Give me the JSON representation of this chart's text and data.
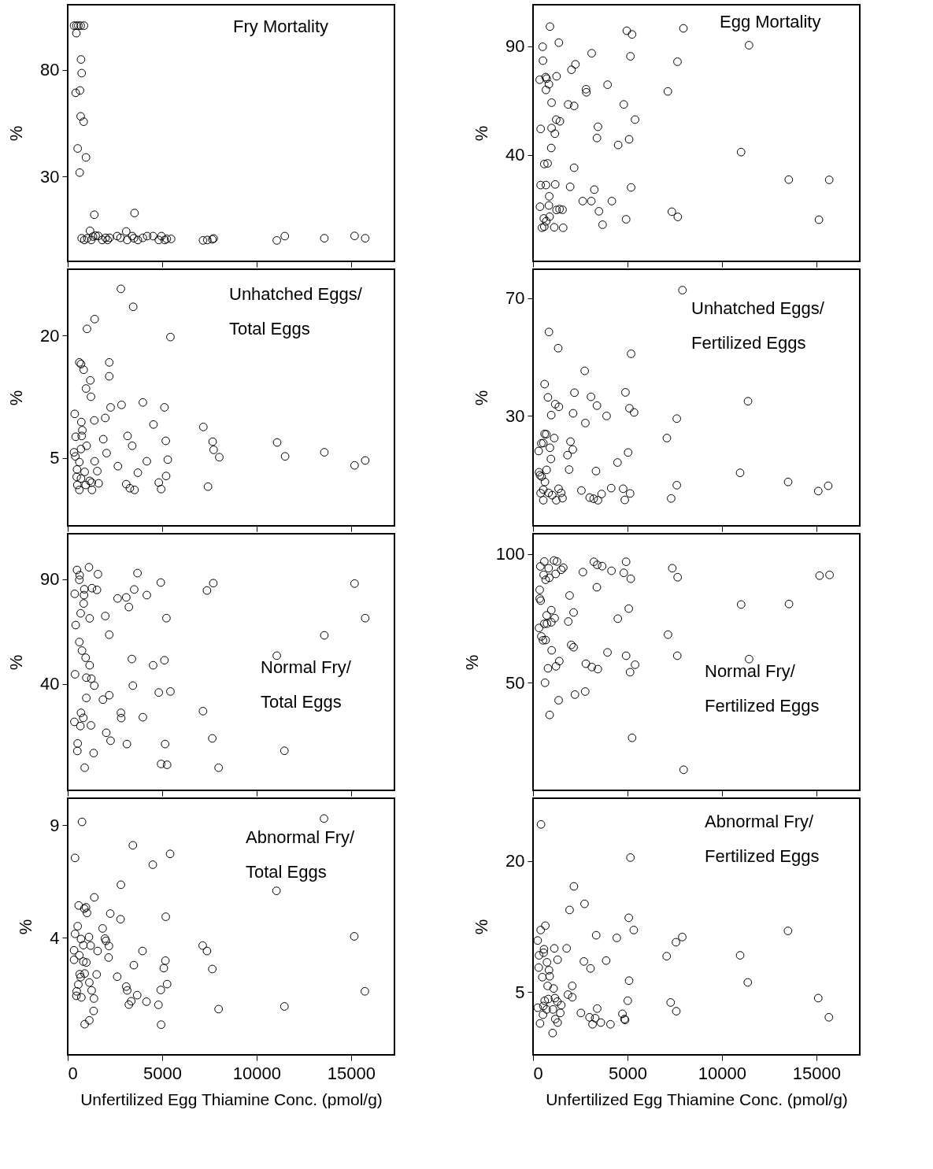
{
  "chart_data": [
    {
      "type": "scatter",
      "title": "Fry Mortality",
      "ylabel": "%",
      "color": "#000000",
      "marker": "circle",
      "grid": false,
      "tick_labels": "y",
      "xlim": [
        0,
        17300
      ],
      "xticks": [
        0,
        5000,
        10000,
        15000
      ],
      "ylim": [
        -9.6,
        110.4
      ],
      "yticks": [
        30,
        80
      ],
      "x": [
        334,
        458,
        563,
        686,
        862,
        458,
        704,
        739,
        422,
        651,
        686,
        845,
        528,
        968,
        634,
        1408,
        3538,
        739,
        880,
        1038,
        1179,
        1250,
        1338,
        1478,
        1619,
        1830,
        2006,
        2112,
        2218,
        2622,
        2798,
        3098,
        3150,
        3414,
        3502,
        3714,
        3978,
        4206,
        4523,
        4822,
        4963,
        5139,
        5245,
        5474,
        7163,
        7392,
        7656,
        7726,
        11070,
        11493,
        13587,
        15189,
        15752
      ],
      "values": [
        100.6,
        100.6,
        100.6,
        100.6,
        100.6,
        97.1,
        84.8,
        78.4,
        69.2,
        70.3,
        58.2,
        55.7,
        43.2,
        39.0,
        31.9,
        12.2,
        13.0,
        1.2,
        0.4,
        1.2,
        4.7,
        0.4,
        2.0,
        2.4,
        2.3,
        0.4,
        1.4,
        0.4,
        1.4,
        2.2,
        1.4,
        4.4,
        0.4,
        2.2,
        1.2,
        0.4,
        1.4,
        2.2,
        2.2,
        0.4,
        2.2,
        0.4,
        0.9,
        0.9,
        0.2,
        0.4,
        0.7,
        1.1,
        0.2,
        2.2,
        1.2,
        2.3,
        1.2
      ]
    },
    {
      "type": "scatter",
      "title": "Egg Mortality",
      "ylabel": "%",
      "color": "#000000",
      "marker": "circle",
      "grid": false,
      "tick_labels": "y",
      "xlim": [
        0,
        17300
      ],
      "xticks": [
        0,
        5000,
        10000,
        15000
      ],
      "ylim": [
        -9.2,
        109.2
      ],
      "yticks": [
        40,
        90
      ],
      "x": [
        895,
        4964,
        5244,
        7963,
        11436,
        509,
        1368,
        3105,
        5157,
        7648,
        526,
        2245,
        2035,
        351,
        667,
        719,
        1245,
        842,
        684,
        2806,
        2824,
        3947,
        7139,
        982,
        1859,
        2175,
        4806,
        1228,
        1421,
        5402,
        403,
        982,
        3438,
        1158,
        3385,
        5087,
        4508,
        965,
        11015,
        596,
        772,
        2175,
        403,
        684,
        1175,
        1964,
        3245,
        5192,
        13541,
        15681,
        859,
        368,
        842,
        2631,
        3087,
        4175,
        1245,
        1403,
        1561,
        3490,
        7349,
        877,
        570,
        700,
        7665,
        4929,
        15137,
        3683,
        474,
        596,
        1123,
        1596
      ],
      "values": [
        99.1,
        97.2,
        95.5,
        98.3,
        90.5,
        89.8,
        91.7,
        86.8,
        85.4,
        82.9,
        83.4,
        81.7,
        79.2,
        74.6,
        75.8,
        75.1,
        76.2,
        72.5,
        69.9,
        70.2,
        68.8,
        72.3,
        69.2,
        64.0,
        63.2,
        62.5,
        63.2,
        56.2,
        55.4,
        56.2,
        51.9,
        52.3,
        52.9,
        49.7,
        47.7,
        47.1,
        44.5,
        43.1,
        41.2,
        35.7,
        36.0,
        34.0,
        26.0,
        26.0,
        26.3,
        25.2,
        23.9,
        24.9,
        28.5,
        28.4,
        20.8,
        16.0,
        16.6,
        18.6,
        18.6,
        18.6,
        14.5,
        14.9,
        14.6,
        13.9,
        13.7,
        11.4,
        10.6,
        9.3,
        11.3,
        10.2,
        10.0,
        7.7,
        6.3,
        6.8,
        6.5,
        6.3
      ]
    },
    {
      "type": "scatter",
      "title": "Unhatched Eggs/\nTotal Eggs",
      "ylabel": "%",
      "color": "#000000",
      "marker": "circle",
      "grid": false,
      "tick_labels": "y",
      "xlim": [
        0,
        17300
      ],
      "xticks": [
        0,
        5000,
        10000,
        15000
      ],
      "ylim": [
        -3.3,
        28.1
      ],
      "yticks": [
        5,
        20
      ],
      "x": [
        2816,
        3467,
        1426,
        1021,
        5438,
        616,
        704,
        2200,
        845,
        2200,
        1197,
        968,
        1232,
        370,
        2270,
        2851,
        3978,
        5122,
        722,
        1408,
        1989,
        4541,
        7181,
        774,
        422,
        739,
        1883,
        3168,
        5192,
        7674,
        704,
        1003,
        3414,
        7726,
        11088,
        334,
        405,
        2059,
        8026,
        11510,
        13587,
        5298,
        15752,
        15189,
        616,
        1426,
        2658,
        4189,
        493,
        898,
        1566,
        3714,
        5210,
        475,
        704,
        1162,
        510,
        950,
        1267,
        1637,
        3098,
        3291,
        3538,
        616,
        1285,
        4822,
        4946,
        7427
      ],
      "values": [
        25.7,
        23.5,
        22.0,
        20.8,
        19.8,
        16.7,
        16.5,
        16.7,
        15.8,
        15.0,
        14.5,
        13.5,
        12.5,
        10.4,
        11.2,
        11.5,
        11.8,
        11.2,
        9.4,
        9.6,
        9.9,
        9.1,
        8.8,
        8.4,
        7.6,
        7.7,
        7.3,
        7.7,
        7.1,
        7.0,
        6.1,
        6.5,
        6.5,
        6.0,
        6.9,
        5.7,
        5.2,
        5.6,
        5.1,
        5.2,
        5.7,
        4.8,
        4.7,
        4.1,
        4.5,
        4.6,
        4.0,
        4.6,
        3.6,
        3.3,
        3.4,
        3.2,
        2.8,
        2.7,
        2.5,
        2.2,
        1.7,
        1.7,
        2.0,
        1.9,
        1.8,
        1.3,
        1.1,
        1.1,
        1.1,
        2.0,
        1.2,
        1.5
      ]
    },
    {
      "type": "scatter",
      "title": "Unhatched Eggs/\nFertilized Eggs",
      "ylabel": "%",
      "color": "#000000",
      "marker": "circle",
      "grid": false,
      "tick_labels": "y",
      "xlim": [
        0,
        17300
      ],
      "xticks": [
        0,
        5000,
        10000,
        15000
      ],
      "ylim": [
        -7.3,
        79.8
      ],
      "yticks": [
        30,
        70
      ],
      "x": [
        7911,
        842,
        1333,
        5192,
        2736,
        614,
        2193,
        4894,
        789,
        3070,
        1175,
        1368,
        3385,
        11383,
        5104,
        5350,
        965,
        2122,
        3894,
        7612,
        2771,
        614,
        702,
        1123,
        7086,
        439,
        544,
        1982,
        895,
        2105,
        298,
        5034,
        1824,
        947,
        4473,
        316,
        368,
        456,
        719,
        1912,
        3333,
        10963,
        631,
        13506,
        7612,
        15628,
        15102,
        403,
        544,
        824,
        1017,
        1351,
        1491,
        2561,
        4139,
        4771,
        5139,
        3631,
        544,
        1228,
        1561,
        2999,
        3210,
        3438,
        4859,
        7314
      ],
      "values": [
        72.7,
        58.5,
        53.0,
        51.1,
        45.3,
        40.8,
        37.9,
        38.0,
        36.3,
        36.5,
        34.0,
        33.1,
        33.5,
        35.0,
        32.6,
        31.2,
        30.3,
        30.9,
        30.0,
        29.1,
        27.6,
        23.9,
        23.8,
        22.5,
        22.5,
        20.7,
        20.8,
        21.3,
        19.2,
        18.6,
        18.1,
        17.6,
        16.7,
        15.4,
        14.2,
        10.9,
        9.9,
        9.4,
        11.7,
        11.8,
        11.3,
        10.7,
        7.6,
        7.6,
        6.5,
        6.3,
        4.5,
        3.8,
        5.0,
        3.9,
        3.1,
        5.3,
        3.9,
        4.7,
        5.5,
        5.3,
        3.7,
        3.5,
        1.4,
        1.4,
        2.1,
        2.3,
        1.9,
        1.4,
        1.5,
        2.0
      ]
    },
    {
      "type": "scatter",
      "title": "Normal Fry/\nTotal Eggs",
      "ylabel": "%",
      "color": "#000000",
      "marker": "circle",
      "grid": false,
      "tick_labels": "y",
      "xlim": [
        0,
        17300
      ],
      "xticks": [
        0,
        5000,
        10000,
        15000
      ],
      "ylim": [
        -10.8,
        111.7
      ],
      "yticks": [
        40,
        90
      ],
      "x": [
        493,
        1126,
        634,
        1602,
        3696,
        616,
        4928,
        7709,
        15189,
        370,
        880,
        1285,
        1549,
        3520,
        7374,
        862,
        2640,
        3098,
        4189,
        845,
        3238,
        686,
        1162,
        1989,
        5227,
        15752,
        422,
        2200,
        13587,
        616,
        757,
        950,
        3397,
        5122,
        11070,
        1162,
        4523,
        387,
        986,
        1250,
        1408,
        3450,
        986,
        1866,
        2200,
        4822,
        5438,
        704,
        827,
        352,
        669,
        1232,
        2816,
        2834,
        3978,
        7163,
        2042,
        2270,
        528,
        3133,
        5157,
        7656,
        510,
        1373,
        11475,
        898,
        4946,
        5262,
        7990
      ],
      "values": [
        94.4,
        95.7,
        91.9,
        92.4,
        92.9,
        89.7,
        88.4,
        88.1,
        87.9,
        83.0,
        85.2,
        85.7,
        84.9,
        85.1,
        84.6,
        82.4,
        80.8,
        81.3,
        82.4,
        78.4,
        76.7,
        73.7,
        71.3,
        72.4,
        71.4,
        71.4,
        68.1,
        63.5,
        63.2,
        60.0,
        55.9,
        52.5,
        51.9,
        51.3,
        53.5,
        48.9,
        48.9,
        44.6,
        43.0,
        42.5,
        39.2,
        39.2,
        33.3,
        32.5,
        34.6,
        35.9,
        36.4,
        26.2,
        23.8,
        21.9,
        19.9,
        20.2,
        26.2,
        23.7,
        24.1,
        27.0,
        16.7,
        12.9,
        11.6,
        11.3,
        11.3,
        14.0,
        8.0,
        7.0,
        8.1,
        0.0,
        1.8,
        1.4,
        0.0
      ]
    },
    {
      "type": "scatter",
      "title": "Normal Fry/\nFertilized Eggs",
      "ylabel": "%",
      "color": "#000000",
      "marker": "circle",
      "grid": false,
      "tick_labels": "y",
      "xlim": [
        0,
        17300
      ],
      "xticks": [
        0,
        5000,
        10000,
        15000
      ],
      "ylim": [
        8.2,
        107.9
      ],
      "yticks": [
        50,
        100
      ],
      "x": [
        598,
        1109,
        1267,
        3221,
        3397,
        3661,
        4928,
        387,
        827,
        1602,
        1496,
        2640,
        4154,
        4805,
        5174,
        7374,
        7656,
        15171,
        15699,
        563,
        1197,
        862,
        669,
        3379,
        352,
        352,
        405,
        1936,
        11018,
        13552,
        968,
        2147,
        5069,
        722,
        1144,
        4488,
        598,
        739,
        968,
        317,
        1866,
        440,
        528,
        669,
        7146,
        2024,
        2147,
        986,
        3942,
        4928,
        7638,
        11440,
        1390,
        792,
        1214,
        2798,
        3115,
        3432,
        5403,
        5139,
        634,
        1355,
        2218,
        2763,
        880,
        5245,
        7973
      ],
      "values": [
        97.1,
        97.5,
        97.1,
        97.0,
        95.8,
        95.3,
        97.0,
        95.2,
        94.5,
        94.7,
        93.9,
        93.0,
        93.5,
        92.7,
        90.4,
        94.5,
        91.0,
        91.6,
        91.9,
        91.9,
        92.3,
        90.8,
        90.0,
        87.1,
        86.1,
        82.7,
        81.9,
        83.9,
        80.4,
        80.6,
        78.2,
        77.3,
        78.8,
        76.2,
        75.1,
        74.9,
        72.9,
        73.0,
        73.5,
        71.3,
        73.8,
        68.0,
        66.5,
        66.6,
        68.7,
        64.7,
        63.8,
        62.6,
        61.8,
        60.5,
        60.5,
        59.2,
        58.4,
        55.6,
        56.4,
        57.4,
        56.1,
        55.3,
        57.0,
        54.1,
        50.0,
        43.2,
        45.4,
        46.6,
        37.5,
        28.6,
        16.2
      ]
    },
    {
      "type": "scatter",
      "title": "Abnormal Fry/\nTotal Eggs",
      "ylabel": "%",
      "xlabel": "Unfertilized Egg Thiamine Conc. (pmol/g)",
      "color": "#000000",
      "marker": "circle",
      "grid": false,
      "xlim": [
        0,
        17300
      ],
      "xticks": [
        0,
        5000,
        10000,
        15000
      ],
      "ylim": [
        -1.2,
        10.19
      ],
      "yticks": [
        4,
        9
      ],
      "x": [
        757,
        13570,
        387,
        3450,
        5421,
        4506,
        2816,
        11053,
        1408,
        581,
        880,
        968,
        1021,
        2253,
        5192,
        2798,
        528,
        1848,
        387,
        704,
        1126,
        1971,
        2024,
        15171,
        827,
        1214,
        2182,
        7146,
        334,
        616,
        1584,
        3960,
        7374,
        334,
        827,
        986,
        2165,
        5174,
        7656,
        3502,
        5086,
        634,
        898,
        1531,
        686,
        2622,
        1144,
        563,
        3098,
        5262,
        1267,
        475,
        3150,
        4928,
        15734,
        458,
        722,
        3678,
        1390,
        3362,
        3238,
        4171,
        4805,
        11475,
        7990,
        1373,
        1144,
        898,
        4946
      ],
      "values": [
        9.14,
        9.29,
        7.54,
        8.1,
        7.72,
        7.24,
        6.35,
        6.08,
        5.79,
        5.43,
        5.29,
        5.35,
        5.1,
        5.07,
        4.93,
        4.82,
        4.51,
        4.41,
        4.17,
        3.94,
        4.03,
        3.96,
        3.86,
        4.06,
        3.67,
        3.65,
        3.63,
        3.65,
        3.44,
        3.22,
        3.41,
        3.41,
        3.41,
        3.02,
        2.94,
        2.9,
        3.12,
        2.98,
        2.61,
        2.78,
        2.65,
        2.38,
        2.41,
        2.37,
        2.25,
        2.27,
        2.01,
        1.92,
        1.83,
        1.94,
        1.66,
        1.62,
        1.66,
        1.68,
        1.62,
        1.42,
        1.35,
        1.45,
        1.3,
        1.18,
        1.03,
        1.16,
        1.02,
        0.95,
        0.83,
        0.75,
        0.33,
        0.16,
        0.14
      ]
    },
    {
      "type": "scatter",
      "title": "Abnormal Fry/\nFertilized Eggs",
      "ylabel": "%",
      "xlabel": "Unfertilized Egg Thiamine Conc. (pmol/g)",
      "color": "#000000",
      "marker": "circle",
      "grid": false,
      "xlim": [
        0,
        17300
      ],
      "xticks": [
        0,
        5000,
        10000,
        15000
      ],
      "ylim": [
        -2.2,
        27.2
      ],
      "yticks": [
        5,
        20
      ],
      "x": [
        422,
        5157,
        2165,
        2728,
        1936,
        5069,
        651,
        405,
        5333,
        13499,
        246,
        3344,
        4435,
        7902,
        7568,
        581,
        1126,
        1778,
        563,
        317,
        739,
        1302,
        2693,
        3872,
        7075,
        10965,
        299,
        845,
        880,
        3045,
        493,
        774,
        1091,
        2077,
        5086,
        11370,
        1848,
        2077,
        5016,
        7286,
        15101,
        246,
        616,
        810,
        1162,
        1285,
        1496,
        546,
        722,
        1056,
        528,
        370,
        1179,
        1302,
        1443,
        2534,
        2992,
        3397,
        3150,
        3291,
        3590,
        4101,
        4734,
        4840,
        4875,
        7586,
        15664,
        1038
      ],
      "values": [
        24.2,
        20.4,
        17.1,
        15.1,
        14.4,
        13.5,
        12.6,
        12.1,
        12.1,
        12.0,
        10.9,
        11.5,
        11.2,
        11.3,
        10.7,
        9.9,
        10.0,
        10.0,
        9.5,
        9.2,
        8.4,
        8.7,
        8.5,
        8.6,
        9.1,
        9.2,
        7.8,
        7.5,
        6.8,
        7.7,
        6.7,
        5.7,
        5.4,
        5.7,
        6.3,
        6.1,
        4.7,
        4.4,
        4.0,
        3.8,
        4.3,
        3.2,
        4.0,
        4.2,
        4.3,
        3.9,
        3.5,
        3.4,
        3.0,
        3.0,
        2.4,
        1.4,
        1.9,
        1.5,
        2.6,
        2.6,
        2.1,
        3.1,
        1.3,
        2.0,
        1.5,
        1.3,
        2.5,
        1.9,
        1.8,
        2.8,
        2.1,
        0.3
      ]
    }
  ]
}
